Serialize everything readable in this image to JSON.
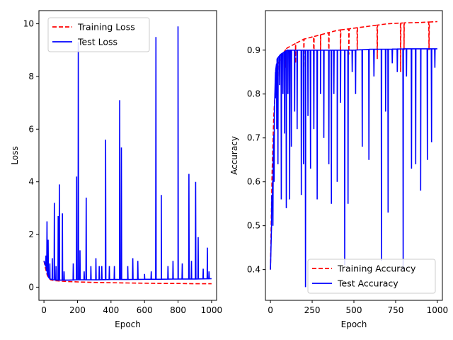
{
  "chart_data": [
    {
      "type": "line",
      "title": "",
      "xlabel": "Epoch",
      "ylabel": "Loss",
      "xlim": [
        -30,
        1030
      ],
      "ylim": [
        -0.5,
        10.5
      ],
      "xticks": [
        0,
        200,
        400,
        600,
        800,
        1000
      ],
      "yticks": [
        0,
        2,
        4,
        6,
        8,
        10
      ],
      "grid": false,
      "legend_position": "top-left",
      "series": [
        {
          "name": "Training Loss",
          "color": "#ff0000",
          "style": "dashed",
          "x": [
            0,
            10,
            20,
            30,
            40,
            60,
            80,
            100,
            150,
            200,
            300,
            400,
            500,
            600,
            700,
            800,
            900,
            1000
          ],
          "y": [
            1.0,
            0.7,
            0.45,
            0.33,
            0.28,
            0.25,
            0.24,
            0.23,
            0.21,
            0.2,
            0.18,
            0.17,
            0.16,
            0.15,
            0.14,
            0.14,
            0.13,
            0.13
          ]
        },
        {
          "name": "Test Loss",
          "color": "#0000ff",
          "style": "solid",
          "x": [
            0,
            10,
            20,
            30,
            40,
            60,
            80,
            100,
            150,
            200,
            300,
            400,
            500,
            600,
            700,
            800,
            900,
            1000
          ],
          "y": [
            1.0,
            0.8,
            0.5,
            0.35,
            0.3,
            0.28,
            0.27,
            0.27,
            0.27,
            0.28,
            0.28,
            0.29,
            0.29,
            0.3,
            0.3,
            0.31,
            0.31,
            0.32
          ],
          "spikes": [
            {
              "x": 12,
              "y": 1.2
            },
            {
              "x": 18,
              "y": 2.5
            },
            {
              "x": 25,
              "y": 1.8
            },
            {
              "x": 35,
              "y": 0.9
            },
            {
              "x": 50,
              "y": 1.1
            },
            {
              "x": 62,
              "y": 3.2
            },
            {
              "x": 72,
              "y": 0.8
            },
            {
              "x": 85,
              "y": 2.7
            },
            {
              "x": 92,
              "y": 3.9
            },
            {
              "x": 110,
              "y": 2.8
            },
            {
              "x": 120,
              "y": 0.6
            },
            {
              "x": 175,
              "y": 0.9
            },
            {
              "x": 195,
              "y": 4.2
            },
            {
              "x": 205,
              "y": 9.3
            },
            {
              "x": 215,
              "y": 1.4
            },
            {
              "x": 240,
              "y": 0.6
            },
            {
              "x": 252,
              "y": 3.4
            },
            {
              "x": 280,
              "y": 0.8
            },
            {
              "x": 310,
              "y": 1.1
            },
            {
              "x": 330,
              "y": 0.8
            },
            {
              "x": 345,
              "y": 0.8
            },
            {
              "x": 368,
              "y": 5.6
            },
            {
              "x": 390,
              "y": 0.8
            },
            {
              "x": 420,
              "y": 0.8
            },
            {
              "x": 452,
              "y": 7.1
            },
            {
              "x": 462,
              "y": 5.3
            },
            {
              "x": 500,
              "y": 0.8
            },
            {
              "x": 530,
              "y": 1.1
            },
            {
              "x": 560,
              "y": 1.0
            },
            {
              "x": 600,
              "y": 0.5
            },
            {
              "x": 640,
              "y": 0.6
            },
            {
              "x": 668,
              "y": 9.5
            },
            {
              "x": 700,
              "y": 3.5
            },
            {
              "x": 740,
              "y": 0.8
            },
            {
              "x": 770,
              "y": 1.0
            },
            {
              "x": 800,
              "y": 9.9
            },
            {
              "x": 825,
              "y": 0.9
            },
            {
              "x": 865,
              "y": 4.3
            },
            {
              "x": 880,
              "y": 1.0
            },
            {
              "x": 905,
              "y": 4.0
            },
            {
              "x": 920,
              "y": 1.9
            },
            {
              "x": 950,
              "y": 0.7
            },
            {
              "x": 975,
              "y": 1.5
            },
            {
              "x": 985,
              "y": 0.6
            }
          ]
        }
      ]
    },
    {
      "type": "line",
      "title": "",
      "xlabel": "Epoch",
      "ylabel": "Accuracy",
      "xlim": [
        -30,
        1030
      ],
      "ylim": [
        0.33,
        0.99
      ],
      "xticks": [
        0,
        250,
        500,
        750,
        1000
      ],
      "yticks": [
        0.4,
        0.5,
        0.6,
        0.7,
        0.8,
        0.9
      ],
      "grid": false,
      "legend_position": "lower-right",
      "series": [
        {
          "name": "Training Accuracy",
          "color": "#ff0000",
          "style": "dashed",
          "x": [
            0,
            10,
            20,
            30,
            40,
            60,
            80,
            100,
            150,
            200,
            300,
            400,
            500,
            600,
            700,
            800,
            900,
            1000
          ],
          "y": [
            0.4,
            0.62,
            0.75,
            0.82,
            0.86,
            0.88,
            0.895,
            0.905,
            0.915,
            0.925,
            0.935,
            0.945,
            0.95,
            0.955,
            0.96,
            0.962,
            0.963,
            0.965
          ],
          "dips": [
            {
              "x": 45,
              "y": 0.83
            },
            {
              "x": 90,
              "y": 0.86
            },
            {
              "x": 150,
              "y": 0.87
            },
            {
              "x": 200,
              "y": 0.86
            },
            {
              "x": 260,
              "y": 0.85
            },
            {
              "x": 300,
              "y": 0.87
            },
            {
              "x": 350,
              "y": 0.88
            },
            {
              "x": 420,
              "y": 0.89
            },
            {
              "x": 470,
              "y": 0.89
            },
            {
              "x": 520,
              "y": 0.9
            },
            {
              "x": 640,
              "y": 0.88
            },
            {
              "x": 780,
              "y": 0.85
            },
            {
              "x": 800,
              "y": 0.9
            },
            {
              "x": 950,
              "y": 0.9
            }
          ]
        },
        {
          "name": "Test Accuracy",
          "color": "#0000ff",
          "style": "solid",
          "x": [
            0,
            10,
            20,
            30,
            40,
            60,
            80,
            100,
            150,
            200,
            300,
            400,
            500,
            600,
            700,
            800,
            900,
            1000
          ],
          "y": [
            0.4,
            0.55,
            0.7,
            0.85,
            0.88,
            0.89,
            0.895,
            0.9,
            0.9,
            0.9,
            0.9,
            0.9,
            0.9,
            0.902,
            0.902,
            0.903,
            0.903,
            0.903
          ],
          "dips": [
            {
              "x": 8,
              "y": 0.57
            },
            {
              "x": 15,
              "y": 0.5
            },
            {
              "x": 22,
              "y": 0.6
            },
            {
              "x": 30,
              "y": 0.79
            },
            {
              "x": 38,
              "y": 0.72
            },
            {
              "x": 45,
              "y": 0.64
            },
            {
              "x": 55,
              "y": 0.82
            },
            {
              "x": 65,
              "y": 0.56
            },
            {
              "x": 75,
              "y": 0.8
            },
            {
              "x": 85,
              "y": 0.71
            },
            {
              "x": 95,
              "y": 0.54
            },
            {
              "x": 105,
              "y": 0.8
            },
            {
              "x": 115,
              "y": 0.56
            },
            {
              "x": 125,
              "y": 0.68
            },
            {
              "x": 145,
              "y": 0.76
            },
            {
              "x": 160,
              "y": 0.72
            },
            {
              "x": 185,
              "y": 0.57
            },
            {
              "x": 198,
              "y": 0.64
            },
            {
              "x": 210,
              "y": 0.36
            },
            {
              "x": 225,
              "y": 0.75
            },
            {
              "x": 240,
              "y": 0.63
            },
            {
              "x": 260,
              "y": 0.72
            },
            {
              "x": 280,
              "y": 0.56
            },
            {
              "x": 300,
              "y": 0.8
            },
            {
              "x": 320,
              "y": 0.7
            },
            {
              "x": 350,
              "y": 0.64
            },
            {
              "x": 365,
              "y": 0.55
            },
            {
              "x": 380,
              "y": 0.8
            },
            {
              "x": 400,
              "y": 0.6
            },
            {
              "x": 420,
              "y": 0.78
            },
            {
              "x": 445,
              "y": 0.41
            },
            {
              "x": 465,
              "y": 0.55
            },
            {
              "x": 490,
              "y": 0.85
            },
            {
              "x": 510,
              "y": 0.8
            },
            {
              "x": 550,
              "y": 0.68
            },
            {
              "x": 590,
              "y": 0.65
            },
            {
              "x": 620,
              "y": 0.84
            },
            {
              "x": 665,
              "y": 0.42
            },
            {
              "x": 690,
              "y": 0.76
            },
            {
              "x": 705,
              "y": 0.53
            },
            {
              "x": 730,
              "y": 0.87
            },
            {
              "x": 760,
              "y": 0.85
            },
            {
              "x": 795,
              "y": 0.4
            },
            {
              "x": 815,
              "y": 0.84
            },
            {
              "x": 845,
              "y": 0.63
            },
            {
              "x": 870,
              "y": 0.64
            },
            {
              "x": 900,
              "y": 0.58
            },
            {
              "x": 940,
              "y": 0.65
            },
            {
              "x": 965,
              "y": 0.69
            },
            {
              "x": 985,
              "y": 0.86
            }
          ]
        }
      ]
    }
  ]
}
